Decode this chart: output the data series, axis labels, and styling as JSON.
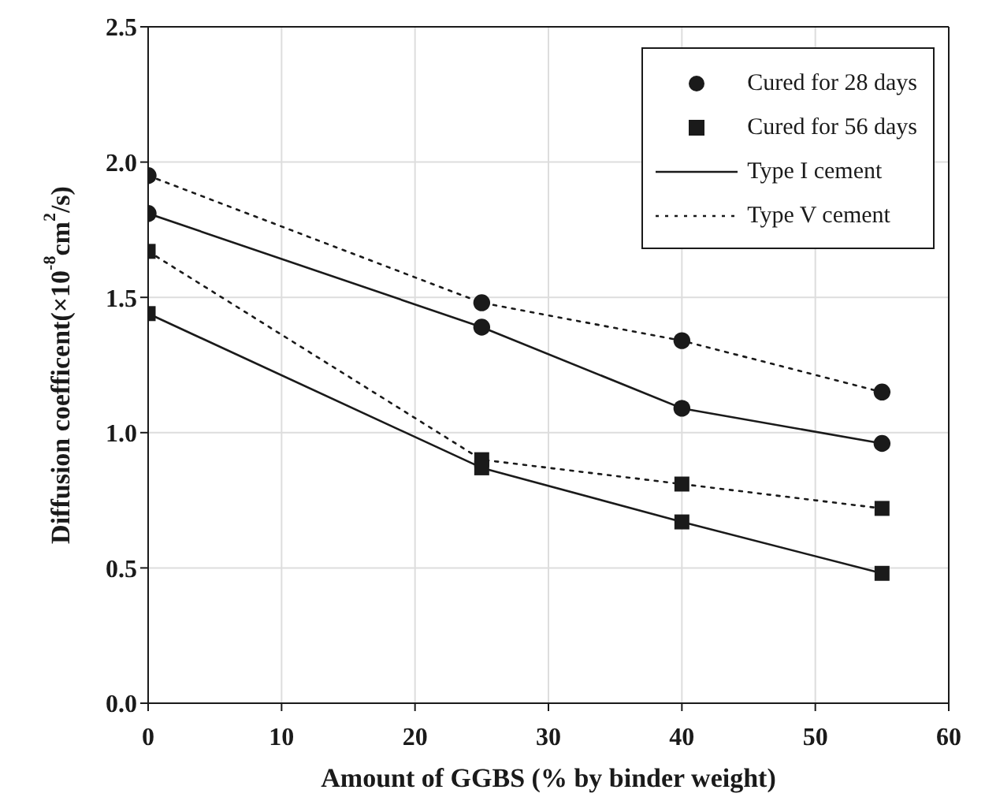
{
  "chart_data": {
    "type": "line",
    "xlabel": "Amount of GGBS (% by binder weight)",
    "ylabel": "Diffusion coefficent(×10$^{-8}$cm$^{2}$/s)",
    "xlim": [
      0,
      60
    ],
    "xticks": [
      0,
      10,
      20,
      30,
      40,
      50,
      60
    ],
    "ylim": [
      0,
      2.5
    ],
    "yticks": [
      {
        "value": 0,
        "label": "0.0"
      },
      {
        "value": 0.5,
        "label": "0.5"
      },
      {
        "value": 1,
        "label": "1.0"
      },
      {
        "value": 1.5,
        "label": "1.5"
      },
      {
        "value": 2,
        "label": "2.0"
      },
      {
        "value": 2.5,
        "label": "2.5"
      }
    ],
    "grid": true,
    "legend": "top right",
    "series": [
      {
        "name": "Cured for 28 days",
        "type": "scatter",
        "marker": "circle",
        "color": "#1a1a1a",
        "x": [
          0,
          25,
          40,
          55,
          0,
          25,
          40,
          55
        ],
        "values": [
          1.95,
          1.48,
          1.34,
          1.15,
          1.81,
          1.39,
          1.09,
          0.96
        ]
      },
      {
        "name": "Cured for 56 days",
        "type": "scatter",
        "marker": "square",
        "color": "#1a1a1a",
        "x": [
          0,
          25,
          40,
          55,
          0,
          25,
          40,
          55
        ],
        "values": [
          1.67,
          0.9,
          0.81,
          0.72,
          1.44,
          0.87,
          0.67,
          0.48
        ]
      },
      {
        "name": "Type I cement",
        "line_style": "solid",
        "color": "#1a1a1a",
        "x": [
          0,
          25,
          40,
          55
        ],
        "values": [
          1.81,
          1.39,
          1.09,
          0.96
        ]
      },
      {
        "line_style": "solid",
        "color": "#1a1a1a",
        "x": [
          0,
          25,
          40,
          55
        ],
        "values": [
          1.44,
          0.87,
          0.67,
          0.48
        ]
      },
      {
        "name": "Type V cement",
        "line_style": "dotted",
        "color": "#1a1a1a",
        "x": [
          0,
          25,
          40,
          55
        ],
        "values": [
          1.95,
          1.48,
          1.34,
          1.15
        ]
      },
      {
        "line_style": "dotted",
        "color": "#1a1a1a",
        "x": [
          0,
          25,
          40,
          55
        ],
        "values": [
          1.67,
          0.9,
          0.81,
          0.72
        ]
      }
    ]
  }
}
